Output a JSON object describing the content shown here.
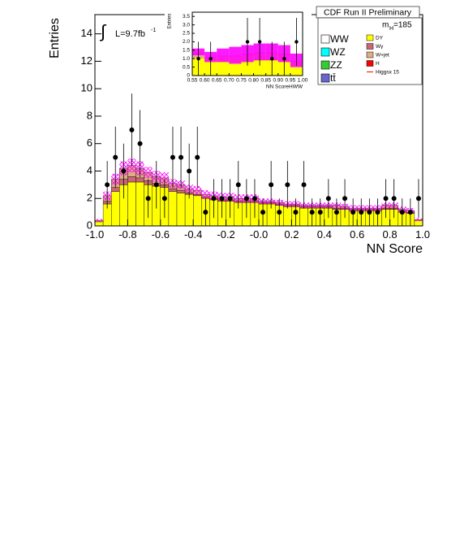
{
  "chart_data": [
    {
      "type": "histogram",
      "y_label": "Entries",
      "x_label": "NN Score",
      "header": "CDF Run II Preliminary",
      "mass_m": "m",
      "mass_sub": "H",
      "mass_value": "=185",
      "integral": "∫",
      "lumi": "L=9.7fb",
      "lumi_sup": "-1",
      "bins": [
        -1.0,
        -0.95,
        -0.9,
        -0.85,
        -0.8,
        -0.75,
        -0.7,
        -0.65,
        -0.6,
        -0.55,
        -0.5,
        -0.45,
        -0.4,
        -0.35,
        -0.3,
        -0.25,
        -0.2,
        -0.15,
        -0.1,
        -0.05,
        0.0,
        0.05,
        0.1,
        0.15,
        0.2,
        0.25,
        0.3,
        0.35,
        0.4,
        0.45,
        0.5,
        0.55,
        0.6,
        0.65,
        0.7,
        0.75,
        0.8,
        0.85,
        0.9,
        0.95,
        1.0
      ],
      "series": [
        {
          "name": "DY",
          "color": "#ffff00",
          "values": [
            0.3,
            1.6,
            2.5,
            3.0,
            3.2,
            3.2,
            3.0,
            2.9,
            2.8,
            2.5,
            2.4,
            2.3,
            2.2,
            2.0,
            1.9,
            1.8,
            1.8,
            1.7,
            1.7,
            1.7,
            1.6,
            1.6,
            1.5,
            1.4,
            1.4,
            1.3,
            1.3,
            1.3,
            1.3,
            1.2,
            1.2,
            1.1,
            1.1,
            1.1,
            1.1,
            1.2,
            1.2,
            1.0,
            0.9,
            0.4
          ]
        },
        {
          "name": "Wγ",
          "color": "#cc6677",
          "values": [
            0,
            0.2,
            0.3,
            0.4,
            0.4,
            0.3,
            0.3,
            0.2,
            0.2,
            0.2,
            0.2,
            0.1,
            0.1,
            0.1,
            0.1,
            0.1,
            0.1,
            0.1,
            0.1,
            0.1,
            0.1,
            0.1,
            0.1,
            0.1,
            0.1,
            0.1,
            0.1,
            0.1,
            0.1,
            0.1,
            0.1,
            0.1,
            0.1,
            0.1,
            0.1,
            0.1,
            0.1,
            0.1,
            0.1,
            0
          ]
        },
        {
          "name": "W+jet",
          "color": "#dcae82",
          "values": [
            0.1,
            0.4,
            0.6,
            0.8,
            0.8,
            0.7,
            0.6,
            0.5,
            0.5,
            0.4,
            0.4,
            0.3,
            0.3,
            0.2,
            0.2,
            0.2,
            0.2,
            0.2,
            0.2,
            0.2,
            0.1,
            0.1,
            0.1,
            0.1,
            0.1,
            0.1,
            0.1,
            0.1,
            0.1,
            0.2,
            0.1,
            0.1,
            0.1,
            0.1,
            0.1,
            0.2,
            0.2,
            0.1,
            0.1,
            0.05
          ]
        }
      ],
      "band_color": "#ff00ff",
      "band_errors": [
        0.1,
        0.3,
        0.4,
        0.5,
        0.5,
        0.5,
        0.4,
        0.4,
        0.4,
        0.3,
        0.3,
        0.3,
        0.3,
        0.3,
        0.3,
        0.3,
        0.3,
        0.3,
        0.3,
        0.3,
        0.2,
        0.2,
        0.2,
        0.2,
        0.2,
        0.2,
        0.2,
        0.2,
        0.2,
        0.2,
        0.2,
        0.2,
        0.2,
        0.2,
        0.2,
        0.2,
        0.2,
        0.2,
        0.2,
        0.1
      ],
      "observed": [
        0,
        3,
        5,
        4,
        7,
        6,
        2,
        3,
        2,
        5,
        5,
        4,
        5,
        1,
        2,
        2,
        2,
        3,
        2,
        2,
        1,
        3,
        1,
        3,
        1,
        3,
        1,
        1,
        2,
        1,
        2,
        1,
        1,
        1,
        1,
        2,
        2,
        1,
        1,
        2
      ],
      "xlim": [
        -1.0,
        1.0
      ],
      "ylim": [
        0,
        15.4
      ],
      "xticks": [
        {
          "value": -1.0,
          "label": "-1.0"
        },
        -0.8,
        -0.6,
        -0.4,
        -0.2,
        {
          "value": 0.0,
          "label": "-0.0"
        },
        0.2,
        0.4,
        0.6,
        0.8,
        {
          "value": 1.0,
          "label": "1.0"
        }
      ],
      "yticks": [
        0,
        2,
        4,
        6,
        8,
        10,
        12,
        14
      ],
      "legend": [
        {
          "name": "WW",
          "color": "#ffffff"
        },
        {
          "name": "WZ",
          "color": "#00ffff"
        },
        {
          "name": "ZZ",
          "color": "#33cc33"
        },
        {
          "name": "tt̄",
          "color": "#6666cc"
        },
        {
          "name": "DY",
          "color": "#ffff00"
        },
        {
          "name": "Wγ",
          "color": "#cc6677"
        },
        {
          "name": "W+jet",
          "color": "#dcae82"
        },
        {
          "name": "H",
          "color": "#ff0000"
        },
        {
          "name": "Higgsx 15",
          "color": "#ff0000"
        }
      ]
    },
    {
      "type": "histogram",
      "y_label": "Entries",
      "x_label": "NN ScoreHWW",
      "bins": [
        0.55,
        0.6,
        0.65,
        0.7,
        0.75,
        0.8,
        0.85,
        0.9,
        0.95,
        1.0
      ],
      "series": [
        {
          "name": "DY",
          "color": "#ffff00",
          "values": [
            1.0,
            1.0,
            1.1,
            1.1,
            1.2,
            1.3,
            1.3,
            1.2,
            0.8
          ]
        },
        {
          "name": "W+jet",
          "color": "#dcae82",
          "values": [
            0.4,
            0.1,
            0.1,
            0.1,
            0.1,
            0.1,
            0.1,
            0.1,
            0.1
          ]
        }
      ],
      "band_color": "#ff00ff",
      "band_errors": [
        0.2,
        0.3,
        0.4,
        0.5,
        0.5,
        0.5,
        0.5,
        0.5,
        0.4
      ],
      "observed": [
        1,
        1,
        null,
        null,
        2,
        2,
        1,
        1,
        2
      ],
      "xlim": [
        0.55,
        1.0
      ],
      "ylim": [
        0,
        3.75
      ],
      "xticks": [
        0.55,
        {
          "value": 0.6,
          "label": "0.60"
        },
        0.65,
        {
          "value": 0.7,
          "label": "0.70"
        },
        0.75,
        {
          "value": 0.8,
          "label": "0.80"
        },
        0.85,
        {
          "value": 0.9,
          "label": "0.90"
        },
        0.95,
        {
          "value": 1.0,
          "label": "1.00"
        }
      ],
      "yticks": [
        0,
        0.5,
        {
          "value": 1.0,
          "label": "1.0"
        },
        1.5,
        {
          "value": 2.0,
          "label": "2.0"
        },
        2.5,
        {
          "value": 3.0,
          "label": "3.0"
        },
        3.5
      ]
    }
  ]
}
